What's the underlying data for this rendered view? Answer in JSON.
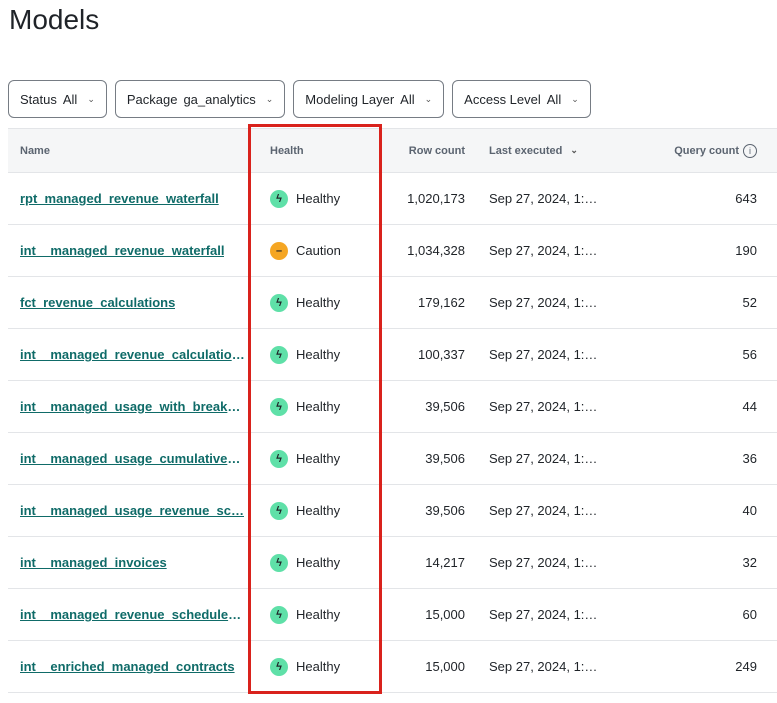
{
  "title": "Models",
  "filters": [
    {
      "label": "Status",
      "value": "All"
    },
    {
      "label": "Package",
      "value": "ga_analytics"
    },
    {
      "label": "Modeling Layer",
      "value": "All"
    },
    {
      "label": "Access Level",
      "value": "All"
    }
  ],
  "columns": {
    "name": "Name",
    "health": "Health",
    "row_count": "Row count",
    "last_executed": "Last executed",
    "query_count": "Query count"
  },
  "colors": {
    "healthy": "#5fe0a8",
    "caution": "#f5a623",
    "link": "#0f6b68",
    "highlight": "#d9221c"
  },
  "rows": [
    {
      "name": "rpt_managed_revenue_waterfall",
      "health": "Healthy",
      "row_count": "1,020,173",
      "last_executed": "Sep 27, 2024, 1:…",
      "query_count": "643"
    },
    {
      "name": "int__managed_revenue_waterfall",
      "health": "Caution",
      "row_count": "1,034,328",
      "last_executed": "Sep 27, 2024, 1:…",
      "query_count": "190"
    },
    {
      "name": "fct_revenue_calculations",
      "health": "Healthy",
      "row_count": "179,162",
      "last_executed": "Sep 27, 2024, 1:…",
      "query_count": "52"
    },
    {
      "name": "int__managed_revenue_calculations",
      "health": "Healthy",
      "row_count": "100,337",
      "last_executed": "Sep 27, 2024, 1:…",
      "query_count": "56"
    },
    {
      "name": "int__managed_usage_with_breaka…",
      "health": "Healthy",
      "row_count": "39,506",
      "last_executed": "Sep 27, 2024, 1:…",
      "query_count": "44"
    },
    {
      "name": "int__managed_usage_cumulative_…",
      "health": "Healthy",
      "row_count": "39,506",
      "last_executed": "Sep 27, 2024, 1:…",
      "query_count": "36"
    },
    {
      "name": "int__managed_usage_revenue_sc…",
      "health": "Healthy",
      "row_count": "39,506",
      "last_executed": "Sep 27, 2024, 1:…",
      "query_count": "40"
    },
    {
      "name": "int__managed_invoices",
      "health": "Healthy",
      "row_count": "14,217",
      "last_executed": "Sep 27, 2024, 1:…",
      "query_count": "32"
    },
    {
      "name": "int__managed_revenue_schedule_…",
      "health": "Healthy",
      "row_count": "15,000",
      "last_executed": "Sep 27, 2024, 1:…",
      "query_count": "60"
    },
    {
      "name": "int__enriched_managed_contracts",
      "health": "Healthy",
      "row_count": "15,000",
      "last_executed": "Sep 27, 2024, 1:…",
      "query_count": "249"
    }
  ]
}
